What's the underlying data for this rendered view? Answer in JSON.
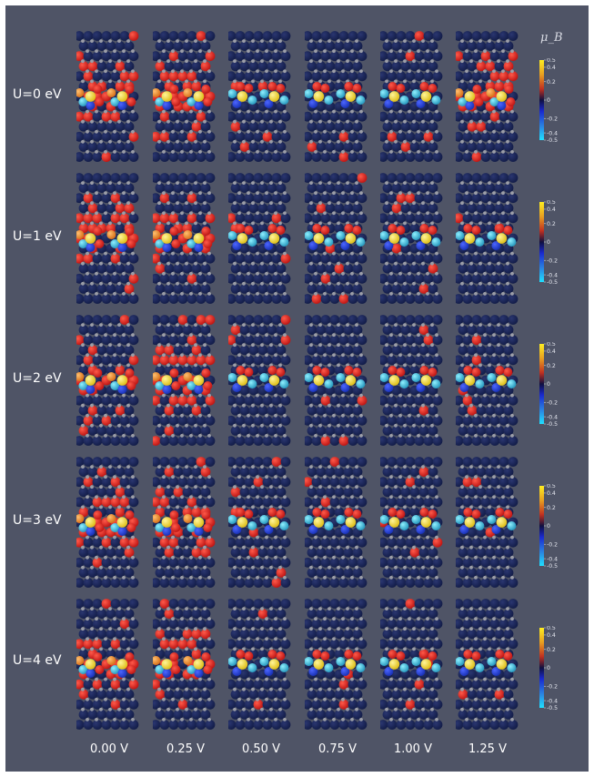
{
  "unit_label": "μ_B",
  "row_labels": [
    "U=0 eV",
    "U=1 eV",
    "U=2 eV",
    "U=3 eV",
    "U=4 eV"
  ],
  "col_labels": [
    "0.00 V",
    "0.25 V",
    "0.50 V",
    "0.75 V",
    "1.00 V",
    "1.25 V"
  ],
  "colorbar_ticks": [
    "0.5",
    "0.4",
    "0.2",
    "0",
    "-0.2",
    "-0.4",
    "-0.5"
  ],
  "colors": {
    "background": "#4f5466",
    "atom_dark": "#141e4a",
    "atom_red": "#c01816",
    "atom_blue": "#1a33b8",
    "atom_yellow": "#e0c01c",
    "atom_cyan": "#2a9bc0",
    "atom_orange": "#d9721a",
    "small_atom": "#9c9ea8"
  }
}
